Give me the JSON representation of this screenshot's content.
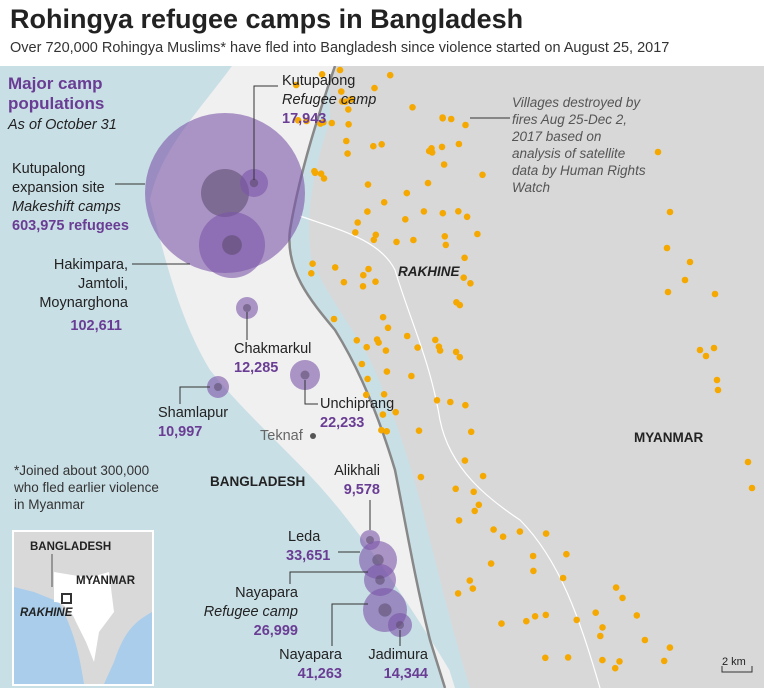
{
  "header": {
    "title": "Rohingya refugee camps in Bangladesh",
    "subtitle": "Over 720,000 Rohingya Muslims* have fled into Bangladesh since violence started on August 25, 2017"
  },
  "legend": {
    "title": "Major camp populations",
    "date": "As of October 31"
  },
  "camps": [
    {
      "name": "Kutupalong",
      "type": "Refugee camp",
      "population": "17,943"
    },
    {
      "name": "Kutupalong expansion site",
      "type": "Makeshift camps",
      "population": "603,975 refugees"
    },
    {
      "name": "Hakimpara, Jamtoli, Moynarghona",
      "population": "102,611"
    },
    {
      "name": "Chakmarkul",
      "population": "12,285"
    },
    {
      "name": "Unchiprang",
      "population": "22,233"
    },
    {
      "name": "Shamlapur",
      "population": "10,997"
    },
    {
      "name": "Alikhali",
      "population": "9,578"
    },
    {
      "name": "Leda",
      "population": "33,651"
    },
    {
      "name": "Nayapara",
      "type": "Refugee camp",
      "population": "26,999"
    },
    {
      "name": "Nayapara",
      "population": "41,263"
    },
    {
      "name": "Jadimura",
      "population": "14,344"
    }
  ],
  "villages_note": "Villages destroyed by fires Aug 25-Dec 2, 2017 based on analysis of satellite data by Human Rights Watch",
  "places": {
    "rakhine": "RAKHINE",
    "myanmar": "MYANMAR",
    "bangladesh": "BANGLADESH",
    "teknaf": "Teknaf"
  },
  "footnote": "*Joined about 300,000 who fled earlier violence in Myanmar",
  "inset": {
    "bangladesh": "BANGLADESH",
    "myanmar": "MYANMAR",
    "rakhine": "RAKHINE"
  },
  "scale": "2 km",
  "colors": {
    "sea": "#c9dfe6",
    "bangladesh": "#f0f0f0",
    "myanmar": "#d8d8d8",
    "camp": "#7b55a8",
    "village": "#f5a800"
  }
}
